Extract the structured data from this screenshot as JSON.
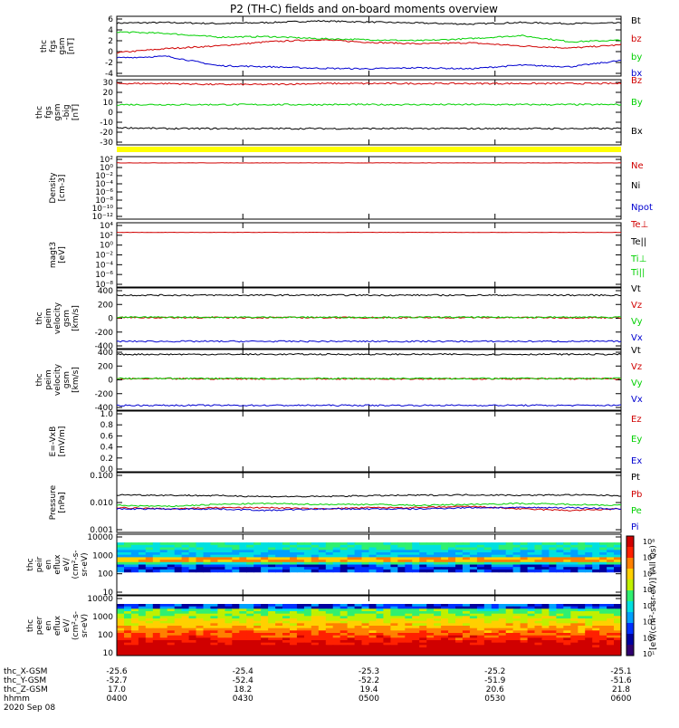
{
  "title": "P2 (TH-C) fields and on-board moments overview",
  "colors": {
    "black": "#000000",
    "red": "#d00000",
    "green": "#00d000",
    "blue": "#0000d0",
    "yellow": "#ffff00"
  },
  "chart_data": [
    {
      "type": "line",
      "panel": "fgs_gsm",
      "ylabel": [
        "thc",
        "fgs",
        "gsm",
        "[nT]"
      ],
      "yticks": [
        "6",
        "4",
        "2",
        "0",
        "-2",
        "-4"
      ],
      "ylim": [
        -5,
        6.5
      ],
      "series": [
        {
          "name": "Bt",
          "color": "black",
          "approx": [
            5.2,
            5.3,
            5.1,
            5.3,
            5.6,
            5.4,
            5.2,
            5.0,
            5.3,
            5.1,
            5.2
          ]
        },
        {
          "name": "bz",
          "color": "red",
          "approx": [
            -0.5,
            0.3,
            0.8,
            1.6,
            2.0,
            1.5,
            1.2,
            1.4,
            0.8,
            0.4,
            1.0
          ]
        },
        {
          "name": "by",
          "color": "green",
          "approx": [
            3.5,
            3.2,
            2.5,
            2.6,
            2.2,
            2.0,
            1.8,
            2.2,
            2.8,
            1.6,
            1.9
          ]
        },
        {
          "name": "bx",
          "color": "blue",
          "approx": [
            -1.5,
            -1.2,
            -3.0,
            -3.2,
            -3.5,
            -3.6,
            -3.4,
            -3.6,
            -2.9,
            -3.2,
            -2.0
          ]
        }
      ]
    },
    {
      "type": "line",
      "panel": "fgs_gsm_big",
      "ylabel": [
        "thc",
        "fgs",
        "gsm",
        "-big",
        "[nT]"
      ],
      "yticks": [
        "30",
        "20",
        "10",
        "0",
        "-10",
        "-20",
        "-30"
      ],
      "ylim": [
        -35,
        33
      ],
      "series": [
        {
          "name": "Bz",
          "color": "red",
          "approx": [
            29,
            29,
            28,
            28,
            29,
            29,
            29,
            29,
            29,
            29,
            29
          ]
        },
        {
          "name": "By",
          "color": "green",
          "approx": [
            7,
            7,
            7,
            7,
            7,
            7,
            7,
            7,
            7,
            7,
            7
          ]
        },
        {
          "name": "Bx",
          "color": "black",
          "approx": [
            -17,
            -18,
            -18,
            -18,
            -18,
            -18,
            -18,
            -18,
            -18,
            -18,
            -18
          ]
        }
      ]
    },
    {
      "type": "line",
      "panel": "density",
      "ylabel": [
        "Density",
        "[cm-3]"
      ],
      "yticks": [
        "10²",
        "10⁰",
        "10⁻²",
        "10⁻⁴",
        "10⁻⁶",
        "10⁻⁸",
        "10⁻¹⁰",
        "10⁻¹²"
      ],
      "ylim_log10": [
        -12,
        2
      ],
      "series": [
        {
          "name": "Ne",
          "color": "red",
          "approx_log10": [
            0.6
          ]
        },
        {
          "name": "Ni",
          "color": "black",
          "approx_log10": [
            null
          ]
        },
        {
          "name": "Npot",
          "color": "blue",
          "approx_log10": [
            null
          ]
        }
      ]
    },
    {
      "type": "line",
      "panel": "temperature",
      "ylabel": [
        "magt3",
        "[eV]"
      ],
      "yticks": [
        "10⁴",
        "10²",
        "10⁰",
        "10⁻²",
        "10⁻⁴",
        "10⁻⁶",
        "10⁻⁸"
      ],
      "ylim_log10": [
        -8,
        4
      ],
      "series": [
        {
          "name": "Te⊥",
          "color": "red",
          "approx_log10": [
            2.2
          ]
        },
        {
          "name": "Te||",
          "color": "black",
          "approx_log10": [
            null
          ]
        },
        {
          "name": "Ti⊥",
          "color": "green",
          "approx_log10": [
            null
          ]
        },
        {
          "name": "Ti||",
          "color": "green",
          "approx_log10": [
            null
          ]
        }
      ]
    },
    {
      "type": "line",
      "panel": "peim_velocity_1",
      "ylabel": [
        "thc",
        "peim",
        "velocity",
        "gsm",
        "[km/s]"
      ],
      "yticks": [
        "400",
        "200",
        "0",
        "-200",
        "-400"
      ],
      "ylim": [
        -440,
        440
      ],
      "series": [
        {
          "name": "Vt",
          "color": "black",
          "approx": [
            335
          ]
        },
        {
          "name": "Vz",
          "color": "red",
          "approx": [
            10
          ]
        },
        {
          "name": "Vy",
          "color": "green",
          "approx": [
            15
          ]
        },
        {
          "name": "Vx",
          "color": "blue",
          "approx": [
            -335
          ]
        }
      ]
    },
    {
      "type": "line",
      "panel": "peim_velocity_2",
      "ylabel": [
        "thc",
        "peim",
        "velocity",
        "gsm",
        "[km/s]"
      ],
      "yticks": [
        "400",
        "200",
        "0",
        "-200",
        "-400"
      ],
      "ylim": [
        -440,
        440
      ],
      "series": [
        {
          "name": "Vt",
          "color": "black",
          "approx": [
            370
          ]
        },
        {
          "name": "Vz",
          "color": "red",
          "approx": [
            15
          ]
        },
        {
          "name": "Vy",
          "color": "green",
          "approx": [
            20
          ]
        },
        {
          "name": "Vx",
          "color": "blue",
          "approx": [
            -370
          ]
        }
      ]
    },
    {
      "type": "line",
      "panel": "efield",
      "ylabel": [
        "E=-VxB",
        "[mV/m]"
      ],
      "yticks": [
        "1.0",
        "0.8",
        "0.6",
        "0.4",
        "0.2",
        "0.0"
      ],
      "ylim": [
        0,
        1
      ],
      "series": [
        {
          "name": "Ez",
          "color": "red",
          "approx": []
        },
        {
          "name": "Ey",
          "color": "green",
          "approx": []
        },
        {
          "name": "Ex",
          "color": "blue",
          "approx": []
        }
      ]
    },
    {
      "type": "line",
      "panel": "pressure",
      "ylabel": [
        "Pressure",
        "[nPa]"
      ],
      "yticks": [
        "0.100",
        "0.010",
        "0.001"
      ],
      "ylim_log10": [
        -3,
        -0.7
      ],
      "series": [
        {
          "name": "Pt",
          "color": "black",
          "approx": [
            0.028,
            0.027,
            0.026,
            0.024,
            0.024,
            0.026,
            0.027,
            0.028,
            0.027,
            0.028,
            0.026
          ]
        },
        {
          "name": "Pb",
          "color": "red",
          "approx": [
            0.009,
            0.008,
            0.009,
            0.009,
            0.008,
            0.009,
            0.009,
            0.01,
            0.008,
            0.007,
            0.008
          ]
        },
        {
          "name": "Pe",
          "color": "green",
          "approx": [
            0.011,
            0.01,
            0.012,
            0.013,
            0.012,
            0.012,
            0.011,
            0.012,
            0.013,
            0.012,
            0.011
          ]
        },
        {
          "name": "Pi",
          "color": "blue",
          "approx": [
            0.008,
            0.008,
            0.008,
            0.007,
            0.008,
            0.008,
            0.008,
            0.009,
            0.009,
            0.009,
            0.008
          ]
        }
      ]
    },
    {
      "type": "heatmap",
      "panel": "peir_eflux",
      "ylabel": [
        "thc",
        "peir",
        "en",
        "eflux",
        "eV/",
        "(cm²-s-",
        "sr-eV)"
      ],
      "yticks": [
        "10000",
        "1000",
        "100",
        "10"
      ],
      "ylim_log10": [
        0.8,
        4.2
      ]
    },
    {
      "type": "heatmap",
      "panel": "peer_eflux",
      "ylabel": [
        "thc",
        "peer",
        "en",
        "eflux",
        "eV/",
        "(cm²-s-",
        "sr-eV)"
      ],
      "yticks": [
        "10000",
        "1000",
        "100",
        "10"
      ],
      "ylim_log10": [
        0.8,
        4.2
      ]
    }
  ],
  "colorbar": {
    "ticks": [
      "10⁸",
      "10⁷",
      "10⁶",
      "10⁵",
      "10⁴",
      "10³",
      "10²",
      "10¹"
    ],
    "label": "[eV/(cm²-s-sr-eV)] (All Qs)"
  },
  "xaxis": {
    "rows": [
      {
        "label": "thc_X-GSM",
        "values": [
          "-25.6",
          "-25.4",
          "-25.3",
          "-25.2",
          "-25.1"
        ]
      },
      {
        "label": "thc_Y-GSM",
        "values": [
          "-52.7",
          "-52.4",
          "-52.2",
          "-51.9",
          "-51.6"
        ]
      },
      {
        "label": "thc_Z-GSM",
        "values": [
          "17.0",
          "18.2",
          "19.4",
          "20.6",
          "21.8"
        ]
      },
      {
        "label": "hhmm",
        "values": [
          "0400",
          "0430",
          "0500",
          "0530",
          "0600"
        ]
      }
    ],
    "date": "2020 Sep 08"
  }
}
